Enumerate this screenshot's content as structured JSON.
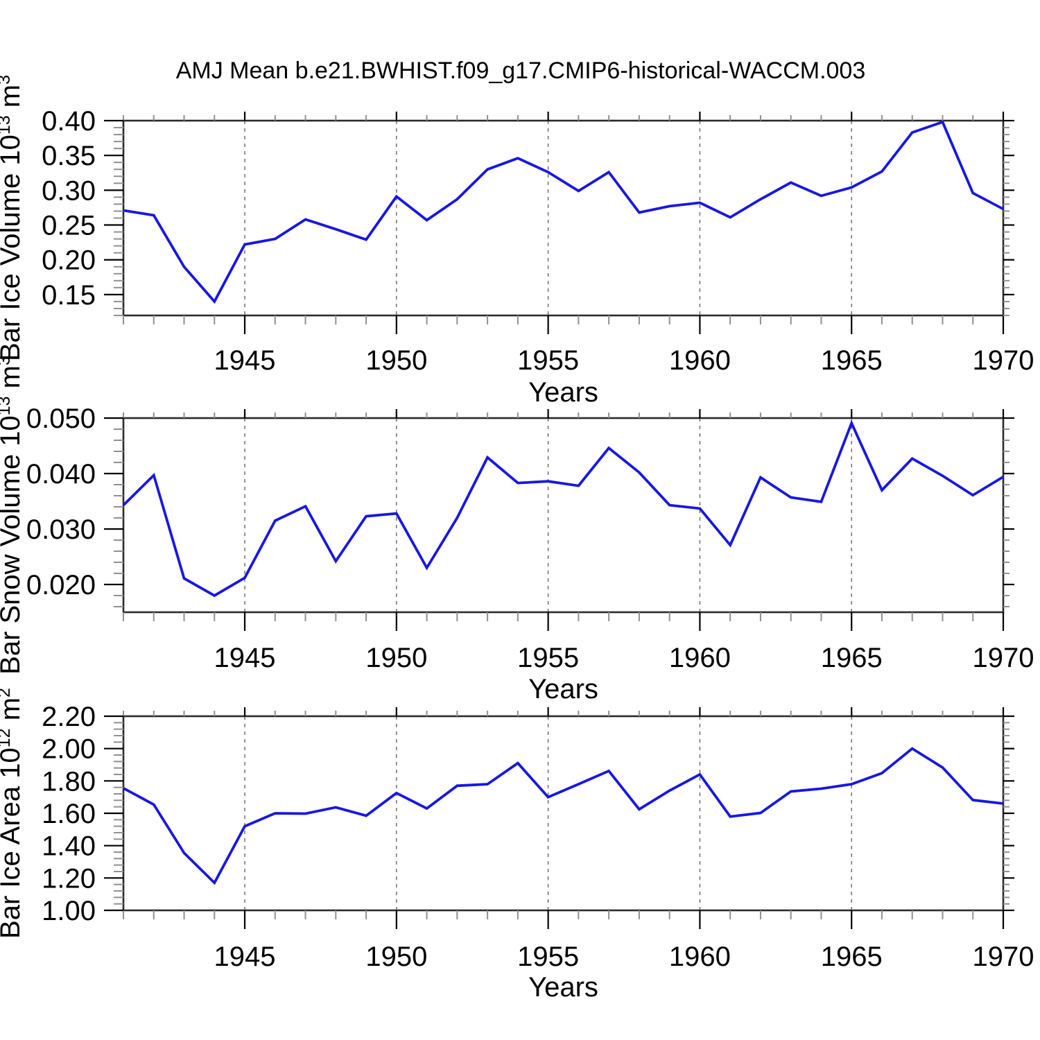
{
  "figure": {
    "title": "AMJ Mean b.e21.BWHIST.f09_g17.CMIP6-historical-WACCM.003",
    "background": "#ffffff",
    "line_color": "#1717e3",
    "frame_color": "#2a2a2a",
    "major_tick_color": "#000000",
    "minor_tick_color": "#909090",
    "grid_color": "#707070",
    "text_color": "#000000"
  },
  "chart_data": [
    {
      "type": "line",
      "name": "bar-ice-volume",
      "ylabel_parts": [
        {
          "t": "Bar Ice Volume 10",
          "sup": false
        },
        {
          "t": "13",
          "sup": true
        },
        {
          "t": " m",
          "sup": false
        },
        {
          "t": "3",
          "sup": true
        }
      ],
      "xlabel": "Years",
      "x": [
        1941,
        1942,
        1943,
        1944,
        1945,
        1946,
        1947,
        1948,
        1949,
        1950,
        1951,
        1952,
        1953,
        1954,
        1955,
        1956,
        1957,
        1958,
        1959,
        1960,
        1961,
        1962,
        1963,
        1964,
        1965,
        1966,
        1967,
        1968,
        1969,
        1970
      ],
      "values": [
        0.271,
        0.264,
        0.19,
        0.14,
        0.222,
        0.23,
        0.258,
        0.244,
        0.229,
        0.291,
        0.257,
        0.287,
        0.33,
        0.346,
        0.326,
        0.299,
        0.326,
        0.268,
        0.277,
        0.282,
        0.261,
        0.287,
        0.311,
        0.292,
        0.304,
        0.327,
        0.383,
        0.398,
        0.296,
        0.273
      ],
      "xlim": [
        1941,
        1970
      ],
      "ylim": [
        0.12,
        0.4
      ],
      "yticks": [
        0.15,
        0.2,
        0.25,
        0.3,
        0.35,
        0.4
      ],
      "ytick_decimals": 2,
      "y_minor_step": 0.01,
      "xticks": [
        1945,
        1950,
        1955,
        1960,
        1965,
        1970
      ],
      "x_minor_step": 1,
      "gridlines_x": [
        1945,
        1950,
        1955,
        1960,
        1965
      ],
      "grid": "vertical-dashed",
      "legend": null
    },
    {
      "type": "line",
      "name": "bar-snow-volume",
      "ylabel_parts": [
        {
          "t": "Bar Snow Volume 10",
          "sup": false
        },
        {
          "t": "13",
          "sup": true
        },
        {
          "t": " m",
          "sup": false
        },
        {
          "t": "3",
          "sup": true
        }
      ],
      "xlabel": "Years",
      "x": [
        1941,
        1942,
        1943,
        1944,
        1945,
        1946,
        1947,
        1948,
        1949,
        1950,
        1951,
        1952,
        1953,
        1954,
        1955,
        1956,
        1957,
        1958,
        1959,
        1960,
        1961,
        1962,
        1963,
        1964,
        1965,
        1966,
        1967,
        1968,
        1969,
        1970
      ],
      "values": [
        0.0343,
        0.0397,
        0.0211,
        0.018,
        0.0212,
        0.0315,
        0.0341,
        0.0242,
        0.0323,
        0.0328,
        0.023,
        0.032,
        0.0429,
        0.0383,
        0.0386,
        0.0378,
        0.0446,
        0.0402,
        0.0343,
        0.0337,
        0.0271,
        0.0393,
        0.0357,
        0.0349,
        0.0491,
        0.037,
        0.0427,
        0.0396,
        0.0361,
        0.0394
      ],
      "xlim": [
        1941,
        1970
      ],
      "ylim": [
        0.015,
        0.05
      ],
      "yticks": [
        0.02,
        0.03,
        0.04,
        0.05
      ],
      "ytick_decimals": 3,
      "y_minor_step": 0.002,
      "xticks": [
        1945,
        1950,
        1955,
        1960,
        1965,
        1970
      ],
      "x_minor_step": 1,
      "gridlines_x": [
        1945,
        1950,
        1955,
        1960,
        1965
      ],
      "grid": "vertical-dashed",
      "legend": null
    },
    {
      "type": "line",
      "name": "bar-ice-area",
      "ylabel_parts": [
        {
          "t": "Bar Ice Area 10",
          "sup": false
        },
        {
          "t": "12",
          "sup": true
        },
        {
          "t": " m",
          "sup": false
        },
        {
          "t": "2",
          "sup": true
        }
      ],
      "xlabel": "Years",
      "x": [
        1941,
        1942,
        1943,
        1944,
        1945,
        1946,
        1947,
        1948,
        1949,
        1950,
        1951,
        1952,
        1953,
        1954,
        1955,
        1956,
        1957,
        1958,
        1959,
        1960,
        1961,
        1962,
        1963,
        1964,
        1965,
        1966,
        1967,
        1968,
        1969,
        1970
      ],
      "values": [
        1.755,
        1.654,
        1.355,
        1.17,
        1.52,
        1.6,
        1.598,
        1.637,
        1.585,
        1.725,
        1.63,
        1.77,
        1.78,
        1.91,
        1.7,
        1.78,
        1.862,
        1.625,
        1.74,
        1.84,
        1.58,
        1.602,
        1.735,
        1.752,
        1.78,
        1.848,
        2.0,
        1.883,
        1.682,
        1.66
      ],
      "xlim": [
        1941,
        1970
      ],
      "ylim": [
        1.0,
        2.2
      ],
      "yticks": [
        1.0,
        1.2,
        1.4,
        1.6,
        1.8,
        2.0,
        2.2
      ],
      "ytick_decimals": 2,
      "y_minor_step": 0.04,
      "xticks": [
        1945,
        1950,
        1955,
        1960,
        1965,
        1970
      ],
      "x_minor_step": 1,
      "gridlines_x": [
        1945,
        1950,
        1955,
        1960,
        1965
      ],
      "grid": "vertical-dashed",
      "legend": null
    }
  ]
}
